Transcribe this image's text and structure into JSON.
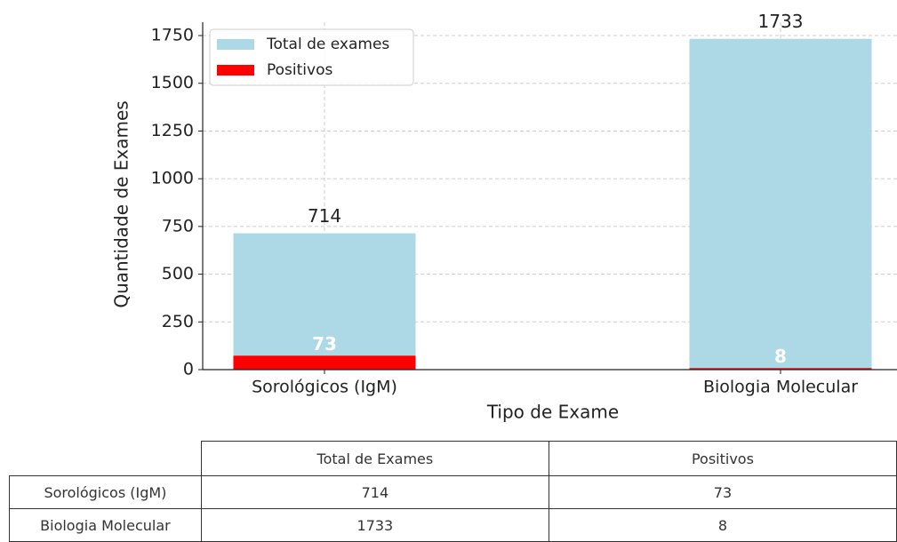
{
  "chart_data": {
    "type": "bar",
    "xlabel": "Tipo de Exame",
    "ylabel": "Quantidade de Exames",
    "categories": [
      "Sorológicos (IgM)",
      "Biologia Molecular"
    ],
    "series": [
      {
        "name": "Total de exames",
        "color": "#add8e6",
        "values": [
          714,
          1733
        ]
      },
      {
        "name": "Positivos",
        "color": "#ff0000",
        "values": [
          73,
          8
        ]
      }
    ],
    "ylim": [
      0,
      1820
    ],
    "yticks": [
      0,
      250,
      500,
      750,
      1000,
      1250,
      1500,
      1750
    ],
    "grid": true,
    "legend": "upper left"
  },
  "table": {
    "columns": [
      "Total de Exames",
      "Positivos"
    ],
    "rows": [
      {
        "label": "Sorológicos (IgM)",
        "cells": [
          714,
          73
        ]
      },
      {
        "label": "Biologia Molecular",
        "cells": [
          1733,
          8
        ]
      }
    ]
  }
}
